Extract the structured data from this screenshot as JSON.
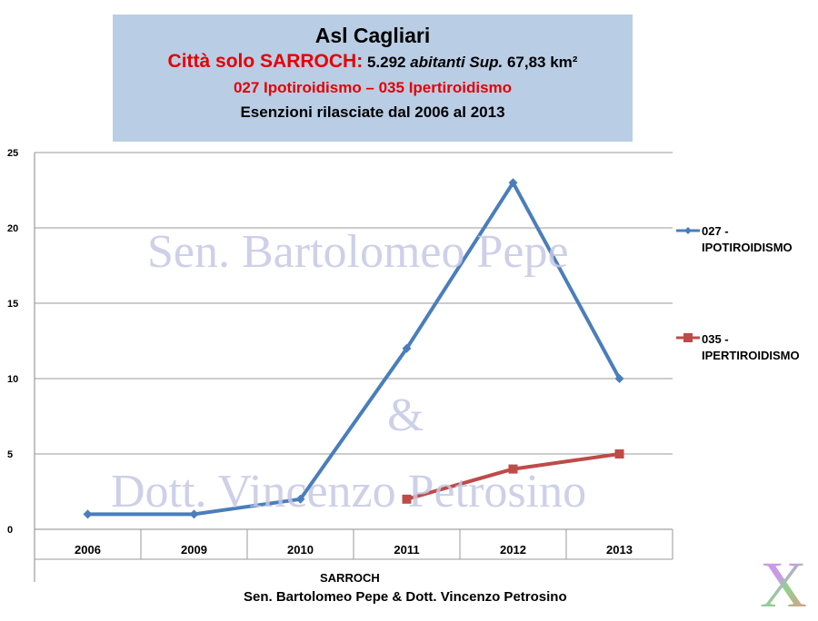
{
  "header": {
    "line1": "Asl Cagliari",
    "line2_red": "Città solo SARROCH:",
    "line2_num": " 5.292 ",
    "line2_it": "abitanti Sup.",
    "line2_area": " 67,83 km²",
    "line3": "027 Ipotiroidismo – 035 Ipertiroidismo",
    "line4": "Esenzioni rilasciate dal 2006 al 2013"
  },
  "watermark": {
    "line1": "Sen. Bartolomeo Pepe",
    "line2": "&",
    "line3": "Dott. Vincenzo Petrosino"
  },
  "credit": "Sen. Bartolomeo Pepe & Dott. Vincenzo Petrosino",
  "chart_data": {
    "type": "line",
    "title": "",
    "xlabel": "SARROCH",
    "ylabel": "",
    "categories": [
      "2006",
      "2009",
      "2010",
      "2011",
      "2012",
      "2013"
    ],
    "ylim": [
      0,
      25
    ],
    "yticks": [
      "0",
      "5",
      "10",
      "15",
      "20",
      "25"
    ],
    "grid": true,
    "legend": "right",
    "series": [
      {
        "name": "027 - IPOTIROIDISMO",
        "color": "#4a7ebb",
        "marker": "diamond",
        "values": [
          1,
          1,
          2,
          12,
          23,
          10
        ]
      },
      {
        "name": "035 - IPERTIROIDISMO",
        "color": "#be4b48",
        "marker": "square",
        "values": [
          null,
          null,
          null,
          2,
          4,
          5
        ]
      }
    ]
  },
  "colors": {
    "header_bg": "#b9cde5",
    "accent_red": "#e60000"
  },
  "logo": {
    "text": "X"
  }
}
